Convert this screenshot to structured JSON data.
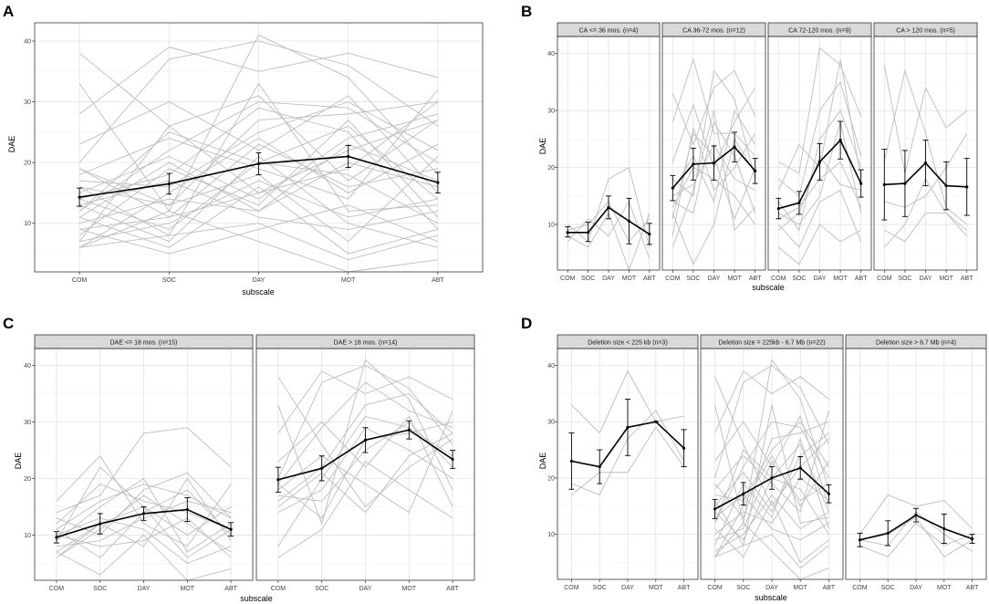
{
  "figure": {
    "subscales": [
      "COM",
      "SOC",
      "DAY",
      "MOT",
      "ABT"
    ],
    "x_axis_title": "subscale",
    "y_axis_title": "DAE",
    "y_ticks": [
      "10",
      "20",
      "30",
      "40"
    ]
  },
  "chart_data": [
    {
      "label": "A",
      "type": "line",
      "xlabel": "subscale",
      "ylabel": "DAE",
      "ylim": [
        2,
        43
      ],
      "categories": [
        "COM",
        "SOC",
        "DAY",
        "MOT",
        "ABT"
      ],
      "facets": [
        {
          "title": "",
          "mean": [
            14.3,
            16.5,
            19.8,
            21.0,
            16.7
          ],
          "err_low": [
            12.8,
            14.8,
            18.0,
            19.2,
            15.0
          ],
          "err_high": [
            15.8,
            18.2,
            21.6,
            22.8,
            18.4
          ],
          "individual": [
            [
              38,
              26,
              15,
              22,
              27
            ],
            [
              33,
              12,
              41,
              34,
              18
            ],
            [
              28,
              39,
              35,
              38,
              34
            ],
            [
              23,
              30,
              22,
              31,
              15
            ],
            [
              20,
              37,
              40,
              36,
              26
            ],
            [
              19,
              13,
              27,
              28,
              30
            ],
            [
              18,
              24,
              19,
              14,
              32
            ],
            [
              17,
              16,
              25,
              30,
              22
            ],
            [
              16,
              8,
              33,
              12,
              13
            ],
            [
              15,
              21,
              14,
              24,
              28
            ],
            [
              14,
              9,
              20,
              18,
              10
            ],
            [
              13,
              17,
              11,
              9,
              12
            ],
            [
              12,
              22,
              30,
              29,
              20
            ],
            [
              11,
              6,
              16,
              5,
              9
            ],
            [
              10,
              14,
              12,
              20,
              16
            ],
            [
              9,
              11,
              23,
              16,
              19
            ],
            [
              8,
              19,
              13,
              27,
              11
            ],
            [
              7,
              10,
              17,
              11,
              14
            ],
            [
              6,
              8,
              10,
              4,
              8
            ],
            [
              6,
              12,
              7,
              2,
              4
            ],
            [
              6,
              15,
              24,
              15,
              23
            ],
            [
              9,
              5,
              9,
              13,
              7
            ],
            [
              12,
              25,
              20,
              26,
              14
            ],
            [
              16,
              13,
              18,
              7,
              21
            ],
            [
              14,
              18,
              29,
              25,
              9
            ],
            [
              11,
              20,
              12,
              23,
              17
            ],
            [
              7,
              26,
              31,
              17,
              27
            ],
            [
              19,
              11,
              15,
              19,
              30
            ],
            [
              13,
              7,
              21,
              10,
              6
            ]
          ]
        }
      ]
    },
    {
      "label": "B",
      "type": "line",
      "xlabel": "subscale",
      "ylabel": "DAE",
      "ylim": [
        2,
        43
      ],
      "categories": [
        "COM",
        "SOC",
        "DAY",
        "MOT",
        "ABT"
      ],
      "facets": [
        {
          "title": "CA <= 36 mos. (n=4)",
          "mean": [
            8.6,
            8.6,
            13.0,
            10.6,
            8.3
          ],
          "err_low": [
            7.8,
            7.0,
            11.0,
            6.6,
            6.5
          ],
          "err_high": [
            9.6,
            10.4,
            15.0,
            14.6,
            10.2
          ],
          "individual": [
            [
              10,
              7,
              18,
              20,
              6
            ],
            [
              9,
              10,
              14,
              7,
              11
            ],
            [
              8,
              6,
              12,
              2,
              12
            ],
            [
              7,
              11,
              8,
              14,
              4
            ]
          ]
        },
        {
          "title": "CA 36-72 mos. (n=12)",
          "mean": [
            16.4,
            20.6,
            20.8,
            23.6,
            19.4
          ],
          "err_low": [
            14.2,
            17.8,
            17.8,
            21.0,
            17.2
          ],
          "err_high": [
            18.6,
            23.4,
            23.8,
            26.2,
            21.6
          ],
          "individual": [
            [
              33,
              24,
              34,
              37,
              29
            ],
            [
              28,
              39,
              26,
              26,
              22
            ],
            [
              21,
              31,
              20,
              28,
              34
            ],
            [
              18,
              15,
              37,
              32,
              18
            ],
            [
              16,
              22,
              14,
              30,
              24
            ],
            [
              15,
              17,
              24,
              18,
              16
            ],
            [
              14,
              12,
              28,
              22,
              12
            ],
            [
              13,
              20,
              18,
              15,
              10
            ],
            [
              12,
              3,
              10,
              25,
              19
            ],
            [
              11,
              26,
              22,
              11,
              20
            ],
            [
              8,
              27,
              16,
              20,
              26
            ],
            [
              6,
              16,
              30,
              9,
              13
            ]
          ]
        },
        {
          "title": "CA 72-120 mos. (n=9)",
          "mean": [
            12.8,
            13.8,
            21.0,
            24.8,
            17.2
          ],
          "err_low": [
            11.0,
            11.8,
            17.8,
            21.5,
            14.8
          ],
          "err_high": [
            14.6,
            15.8,
            24.2,
            28.1,
            19.6
          ],
          "individual": [
            [
              21,
              19,
              41,
              38,
              29
            ],
            [
              18,
              15,
              30,
              35,
              22
            ],
            [
              16,
              24,
              20,
              39,
              18
            ],
            [
              14,
              9,
              25,
              30,
              20
            ],
            [
              12,
              10,
              15,
              28,
              12
            ],
            [
              11,
              13,
              18,
              21,
              13
            ],
            [
              10,
              6,
              14,
              16,
              7
            ],
            [
              9,
              12,
              22,
              17,
              16
            ],
            [
              6,
              3,
              10,
              7,
              9
            ]
          ]
        },
        {
          "title": "CA > 120 mos. (n=5)",
          "mean": [
            17.0,
            17.2,
            20.8,
            16.8,
            16.6
          ],
          "err_low": [
            10.8,
            11.4,
            16.8,
            12.6,
            11.6
          ],
          "err_high": [
            23.2,
            23.0,
            24.8,
            21.0,
            21.6
          ],
          "individual": [
            [
              38,
              19,
              34,
              27,
              30
            ],
            [
              21,
              37,
              26,
              13,
              10
            ],
            [
              14,
              13,
              15,
              20,
              26
            ],
            [
              6,
              10,
              18,
              12,
              8
            ],
            [
              9,
              7,
              12,
              12,
              9
            ]
          ]
        }
      ]
    },
    {
      "label": "C",
      "type": "line",
      "xlabel": "subscale",
      "ylabel": "DAE",
      "ylim": [
        2,
        43
      ],
      "categories": [
        "COM",
        "SOC",
        "DAY",
        "MOT",
        "ABT"
      ],
      "facets": [
        {
          "title": "DAE <= 18 mos. (n=15)",
          "mean": [
            9.6,
            12.0,
            13.8,
            14.5,
            11.0
          ],
          "err_low": [
            8.6,
            10.2,
            12.6,
            12.4,
            9.8
          ],
          "err_high": [
            10.6,
            13.8,
            15.0,
            16.6,
            12.2
          ],
          "individual": [
            [
              16,
              24,
              12,
              8,
              19
            ],
            [
              14,
              17,
              28,
              29,
              22
            ],
            [
              13,
              10,
              18,
              21,
              13
            ],
            [
              12,
              19,
              16,
              14,
              11
            ],
            [
              11,
              6,
              14,
              18,
              10
            ],
            [
              10,
              13,
              11,
              5,
              8
            ],
            [
              9,
              15,
              20,
              7,
              12
            ],
            [
              8,
              9,
              13,
              16,
              14
            ],
            [
              7,
              3,
              10,
              2,
              4
            ],
            [
              6,
              11,
              17,
              12,
              7
            ],
            [
              6,
              12,
              8,
              20,
              9
            ],
            [
              9,
              22,
              15,
              10,
              15
            ],
            [
              10,
              8,
              9,
              13,
              6
            ],
            [
              11,
              16,
              19,
              17,
              13
            ],
            [
              7,
              12,
              15,
              6,
              11
            ]
          ]
        },
        {
          "title": "DAE > 18 mos. (n=14)",
          "mean": [
            19.8,
            21.8,
            26.8,
            28.6,
            23.4
          ],
          "err_low": [
            17.6,
            19.6,
            24.6,
            27.0,
            21.8
          ],
          "err_high": [
            22.0,
            24.0,
            29.0,
            30.2,
            25.0
          ],
          "individual": [
            [
              38,
              26,
              15,
              22,
              27
            ],
            [
              33,
              12,
              41,
              34,
              18
            ],
            [
              28,
              39,
              35,
              38,
              34
            ],
            [
              23,
              30,
              22,
              31,
              15
            ],
            [
              20,
              37,
              40,
              36,
              26
            ],
            [
              19,
              13,
              27,
              28,
              30
            ],
            [
              18,
              24,
              19,
              14,
              32
            ],
            [
              17,
              16,
              25,
              30,
              22
            ],
            [
              16,
              22,
              33,
              35,
              28
            ],
            [
              15,
              21,
              14,
              24,
              28
            ],
            [
              14,
              18,
              29,
              25,
              20
            ],
            [
              8,
              20,
              31,
              29,
              24
            ],
            [
              6,
              11,
              23,
              18,
              13
            ],
            [
              19,
              29,
              37,
              32,
              29
            ]
          ]
        }
      ]
    },
    {
      "label": "D",
      "type": "line",
      "xlabel": "subscale",
      "ylabel": "DAE",
      "ylim": [
        2,
        43
      ],
      "categories": [
        "COM",
        "SOC",
        "DAY",
        "MOT",
        "ABT"
      ],
      "facets": [
        {
          "title": "Deletion size < 225 kb (n=3)",
          "mean": [
            23.0,
            22.0,
            29.0,
            30.0,
            25.3
          ],
          "err_low": [
            18.0,
            19.0,
            24.0,
            30.0,
            22.0
          ],
          "err_high": [
            28.0,
            25.0,
            34.0,
            30.0,
            28.6
          ],
          "individual": [
            [
              33,
              28,
              39,
              30,
              31
            ],
            [
              19,
              17,
              27,
              32,
              23
            ],
            [
              17,
              21,
              21,
              29,
              22
            ]
          ]
        },
        {
          "title": "Deletion size = 225kb - 6.7 Mb (n=22)",
          "mean": [
            14.5,
            17.2,
            20.0,
            21.8,
            17.2
          ],
          "err_low": [
            12.8,
            15.2,
            18.0,
            19.8,
            15.6
          ],
          "err_high": [
            16.2,
            19.2,
            22.0,
            23.8,
            18.8
          ],
          "individual": [
            [
              38,
              26,
              15,
              22,
              27
            ],
            [
              33,
              12,
              41,
              34,
              18
            ],
            [
              28,
              39,
              35,
              38,
              34
            ],
            [
              23,
              30,
              22,
              31,
              15
            ],
            [
              20,
              37,
              40,
              36,
              26
            ],
            [
              19,
              13,
              27,
              28,
              30
            ],
            [
              18,
              24,
              19,
              14,
              32
            ],
            [
              17,
              16,
              25,
              30,
              22
            ],
            [
              16,
              8,
              33,
              12,
              13
            ],
            [
              15,
              21,
              14,
              24,
              28
            ],
            [
              14,
              9,
              20,
              18,
              10
            ],
            [
              13,
              17,
              11,
              9,
              12
            ],
            [
              12,
              22,
              30,
              29,
              20
            ],
            [
              11,
              6,
              16,
              5,
              9
            ],
            [
              10,
              14,
              12,
              20,
              16
            ],
            [
              9,
              11,
              23,
              16,
              19
            ],
            [
              8,
              19,
              13,
              27,
              11
            ],
            [
              7,
              10,
              17,
              11,
              14
            ],
            [
              6,
              8,
              10,
              4,
              8
            ],
            [
              6,
              12,
              7,
              2,
              4
            ],
            [
              6,
              15,
              24,
              15,
              23
            ],
            [
              12,
              25,
              20,
              26,
              14
            ]
          ]
        },
        {
          "title": "Deletion size > 6.7 Mb (n=4)",
          "mean": [
            9.0,
            10.2,
            13.4,
            11.0,
            9.2
          ],
          "err_low": [
            7.8,
            8.0,
            12.2,
            8.4,
            8.4
          ],
          "err_high": [
            10.2,
            12.4,
            14.6,
            13.6,
            10.0
          ],
          "individual": [
            [
              10,
              17,
              15,
              16,
              11
            ],
            [
              9,
              8,
              14,
              10,
              7
            ],
            [
              8,
              6,
              12,
              8,
              10
            ],
            [
              9,
              10,
              13,
              6,
              9
            ]
          ]
        }
      ]
    }
  ]
}
